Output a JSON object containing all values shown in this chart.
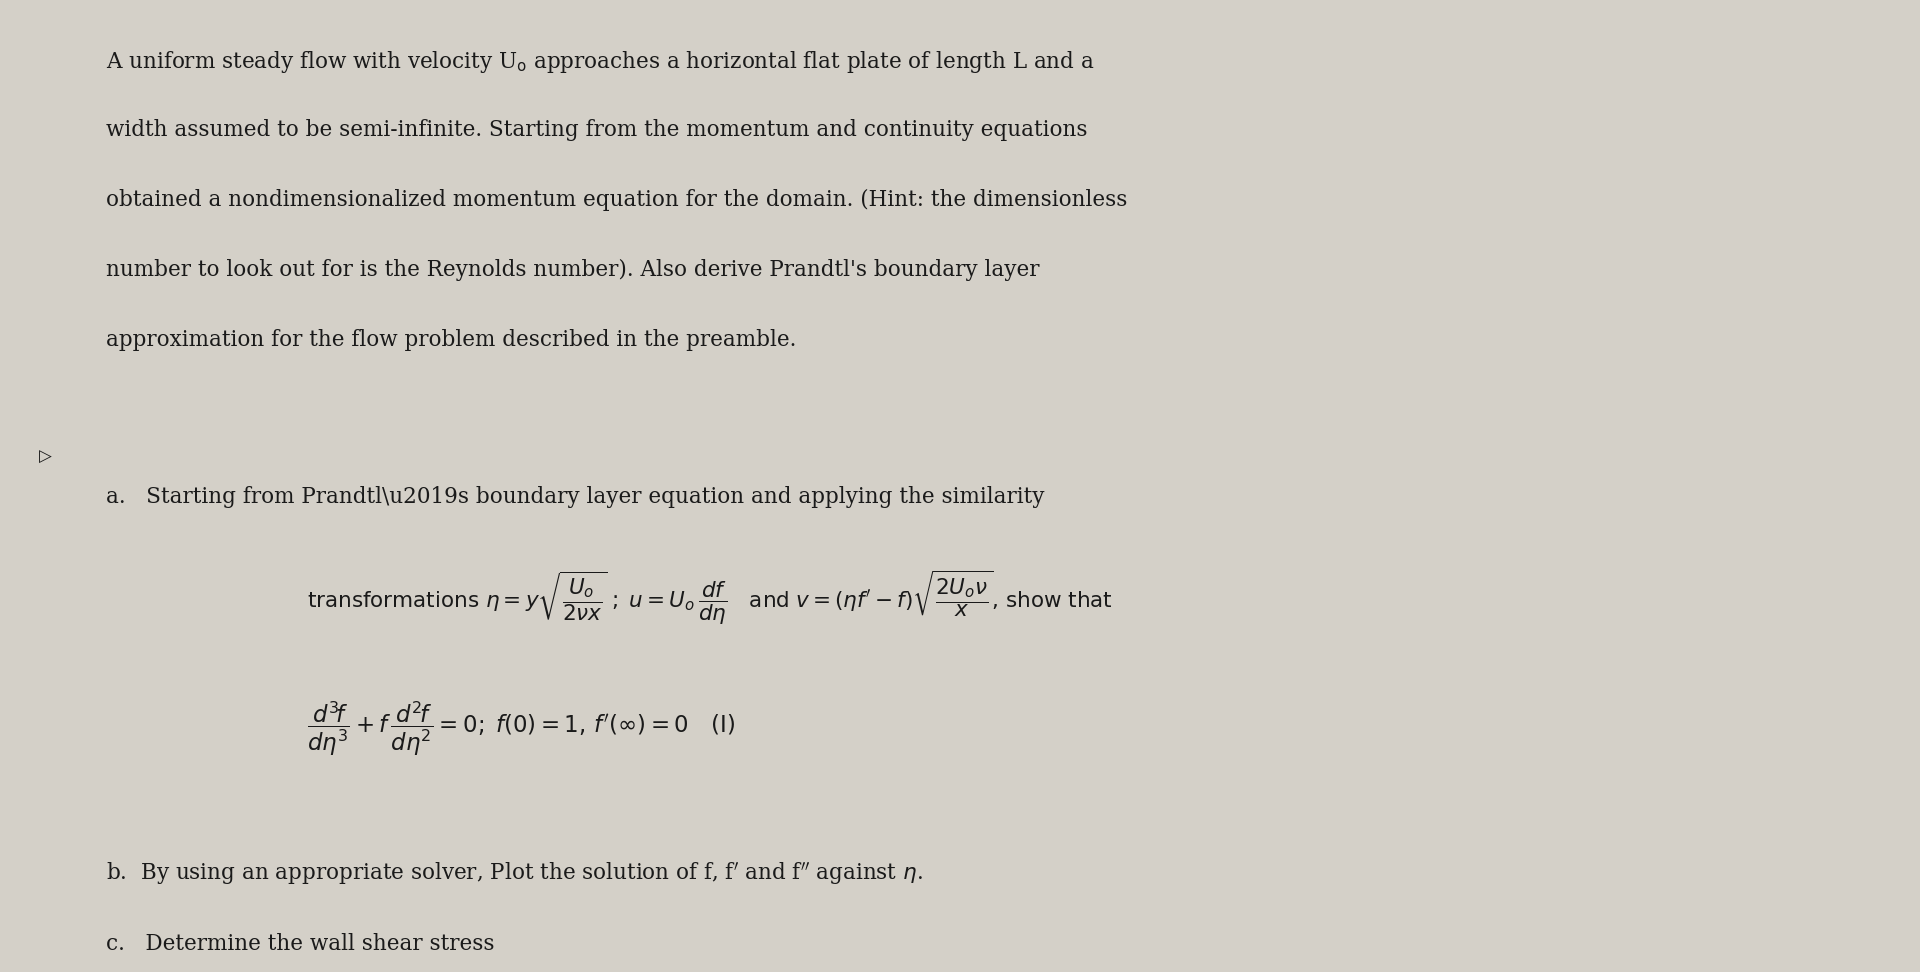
{
  "background_color": "#d4d0c8",
  "text_color": "#1a1a1a",
  "fig_width": 19.2,
  "fig_height": 9.72,
  "preamble": "A uniform steady flow with velocity U\\textsubscript{o} approaches a horizontal flat plate of length L and a\nwidth assumed to be semi-infinite. Starting from the momentum and continuity equations\nobtained a nondimensionalized momentum equation for the domain. (Hint: the dimensionless\nnumber to look out for is the Reynolds number). Also derive Prandtl's boundary layer\napproximation for the flow problem described in the preamble.",
  "part_a_intro": "a.   Starting from Prandtl’s boundary layer equation and applying the similarity",
  "part_b": "b.  By using an appropriate solver, Plot the solution of f, f’ and f’’ against η.",
  "part_c": "c.   Determine the wall shear stress"
}
